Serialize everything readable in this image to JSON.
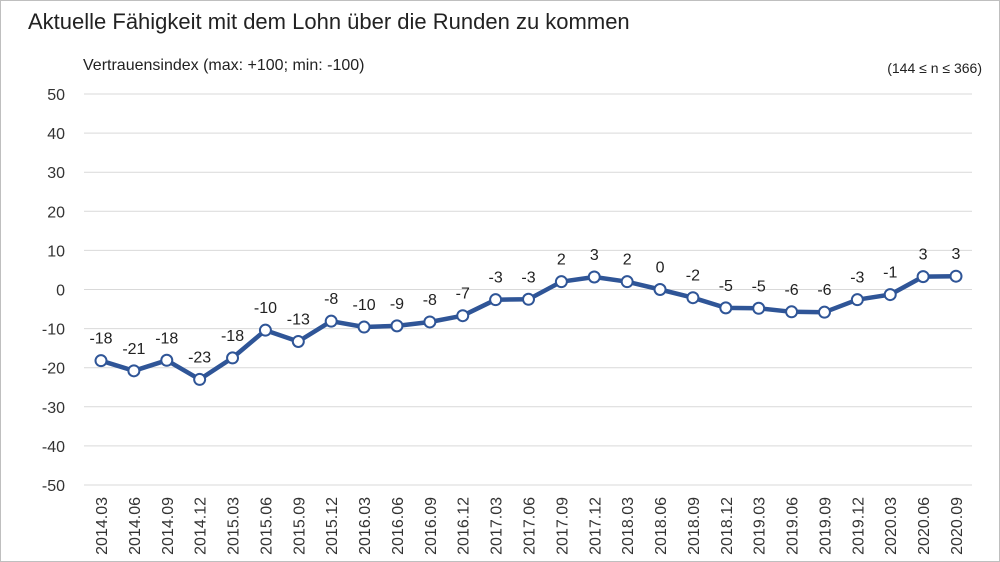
{
  "colors": {
    "line": "#2f5597",
    "grid": "#d9d9d9",
    "marker_fill": "#ffffff"
  },
  "chart_data": {
    "type": "line",
    "title": "Aktuelle Fähigkeit mit dem Lohn über die Runden zu kommen",
    "ylabel": "Vertrauensindex (max: +100; min: -100)",
    "note": "(144 ≤ n ≤ 366)",
    "xlabel": "",
    "ylim": [
      -50,
      50
    ],
    "yticks": [
      50,
      40,
      30,
      20,
      10,
      0,
      -10,
      -20,
      -30,
      -40,
      -50
    ],
    "grid": true,
    "legend": "none",
    "x": [
      "2014.03",
      "2014.06",
      "2014.09",
      "2014.12",
      "2015.03",
      "2015.06",
      "2015.09",
      "2015.12",
      "2016.03",
      "2016.06",
      "2016.09",
      "2016.12",
      "2017.03",
      "2017.06",
      "2017.09",
      "2017.12",
      "2018.03",
      "2018.06",
      "2018.09",
      "2018.12",
      "2019.03",
      "2019.06",
      "2019.09",
      "2019.12",
      "2020.03",
      "2020.06",
      "2020.09"
    ],
    "series": [
      {
        "values": [
          -18.2,
          -20.8,
          -18.1,
          -23.0,
          -17.5,
          -10.4,
          -13.3,
          -8.1,
          -9.6,
          -9.3,
          -8.3,
          -6.7,
          -2.6,
          -2.5,
          2.0,
          3.2,
          2.0,
          0.0,
          -2.1,
          -4.7,
          -4.8,
          -5.7,
          -5.8,
          -2.6,
          -1.3,
          3.3,
          3.4
        ],
        "labels": [
          "-18",
          "-21",
          "-18",
          "-23",
          "-18",
          "-10",
          "-13",
          "-8",
          "-10",
          "-9",
          "-8",
          "-7",
          "-3",
          "-3",
          "2",
          "3",
          "2",
          "0",
          "-2",
          "-5",
          "-5",
          "-6",
          "-6",
          "-3",
          "-1",
          "3",
          "3"
        ]
      }
    ]
  }
}
